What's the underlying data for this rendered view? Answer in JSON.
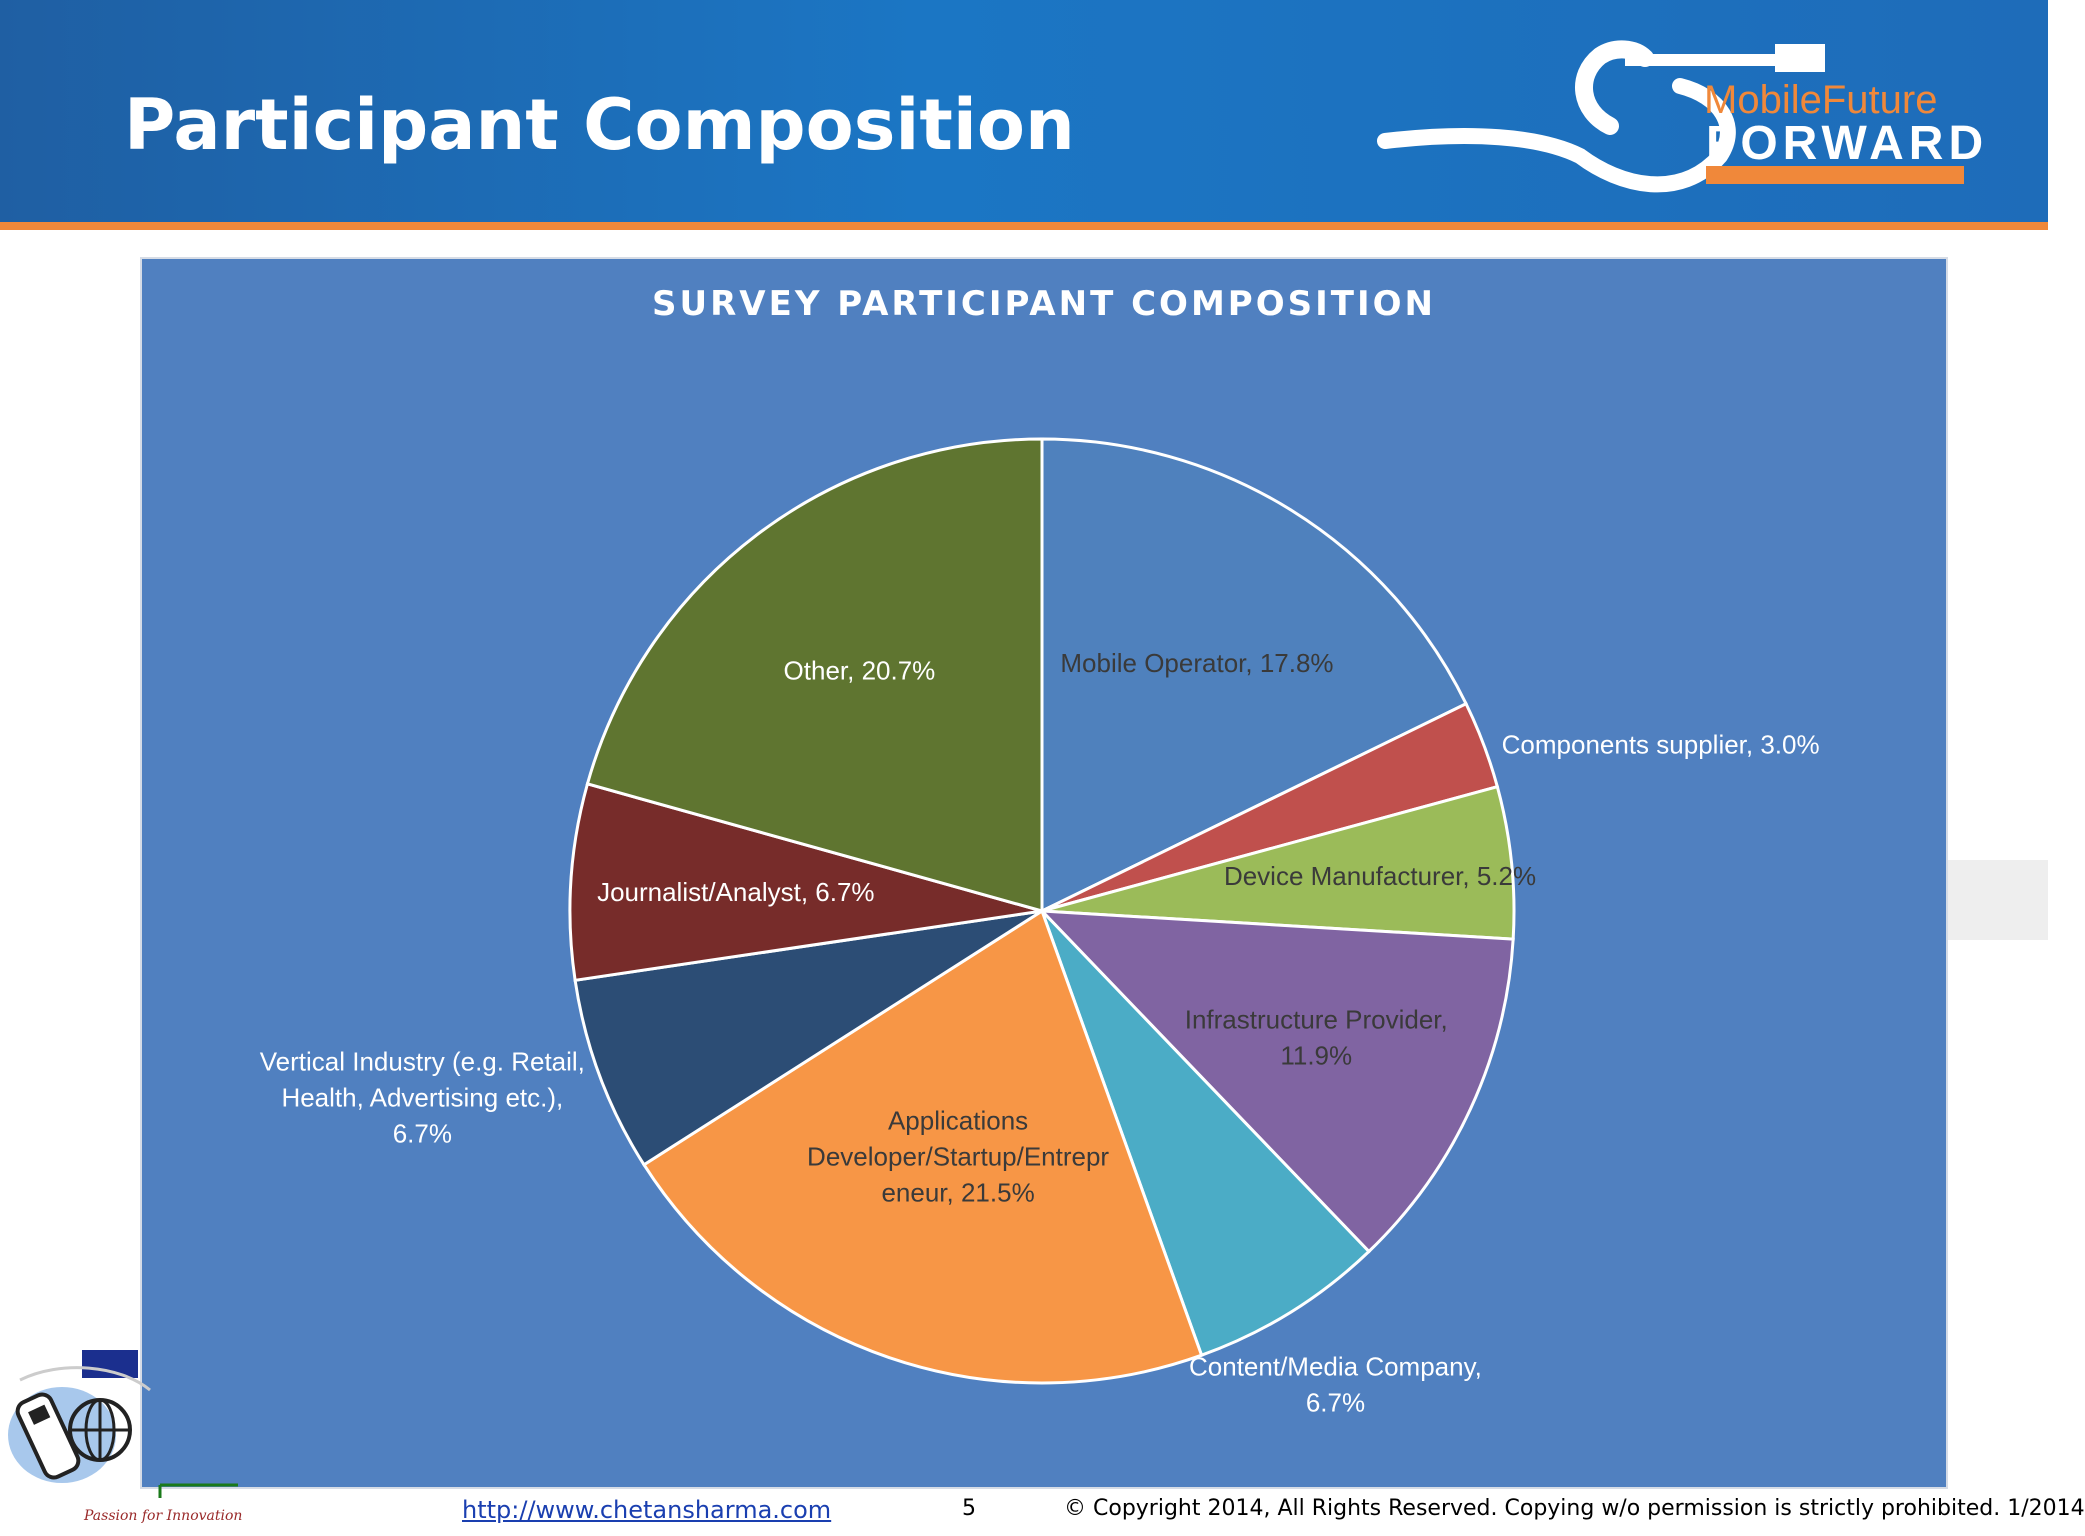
{
  "slide": {
    "title": "Participant Composition"
  },
  "logo": {
    "line1": "MobileFuture",
    "line2": "FORWARD"
  },
  "chart_data": {
    "type": "pie",
    "title": "SURVEY PARTICIPANT COMPOSITION",
    "slices": [
      {
        "name": "Mobile Operator",
        "value": 17.8,
        "label_lines": [
          "Mobile Operator, 17.8%"
        ],
        "color": "#4f81bd",
        "text_color": "#3a3a3a"
      },
      {
        "name": "Components supplier",
        "value": 3.0,
        "label_lines": [
          "Components supplier, 3.0%"
        ],
        "color": "#c0504d",
        "text_color": "#ffffff"
      },
      {
        "name": "Device Manufacturer",
        "value": 5.2,
        "label_lines": [
          "Device Manufacturer, 5.2%"
        ],
        "color": "#9bbb59",
        "text_color": "#3a3a3a"
      },
      {
        "name": "Infrastructure Provider",
        "value": 11.9,
        "label_lines": [
          "Infrastructure Provider,",
          "11.9%"
        ],
        "color": "#8064a2",
        "text_color": "#3a3a3a"
      },
      {
        "name": "Content/Media Company",
        "value": 6.7,
        "label_lines": [
          "Content/Media Company,",
          "6.7%"
        ],
        "color": "#4bacc6",
        "text_color": "#ffffff"
      },
      {
        "name": "Applications Developer/Startup/Entrepreneur",
        "value": 21.5,
        "label_lines": [
          "Applications",
          "Developer/Startup/Entrepr",
          "eneur, 21.5%"
        ],
        "color": "#f79646",
        "text_color": "#3a3a3a"
      },
      {
        "name": "Vertical Industry (e.g. Retail, Health, Advertising etc.)",
        "value": 6.7,
        "label_lines": [
          "Vertical Industry (e.g. Retail,",
          "Health, Advertising etc.),",
          "6.7%"
        ],
        "color": "#2c4d75",
        "text_color": "#ffffff"
      },
      {
        "name": "Journalist/Analyst",
        "value": 6.7,
        "label_lines": [
          "Journalist/Analyst, 6.7%"
        ],
        "color": "#772c2a",
        "text_color": "#ffffff"
      },
      {
        "name": "Other",
        "value": 20.7,
        "label_lines": [
          "Other, 20.7%"
        ],
        "color": "#5f7530",
        "text_color": "#ffffff"
      }
    ]
  },
  "footer": {
    "tagline": "Passion for Innovation",
    "link": "http://www.chetansharma.com",
    "page": "5",
    "copyright": "© Copyright 2014, All Rights Reserved. Copying w/o permission is strictly prohibited. 1/2014"
  }
}
